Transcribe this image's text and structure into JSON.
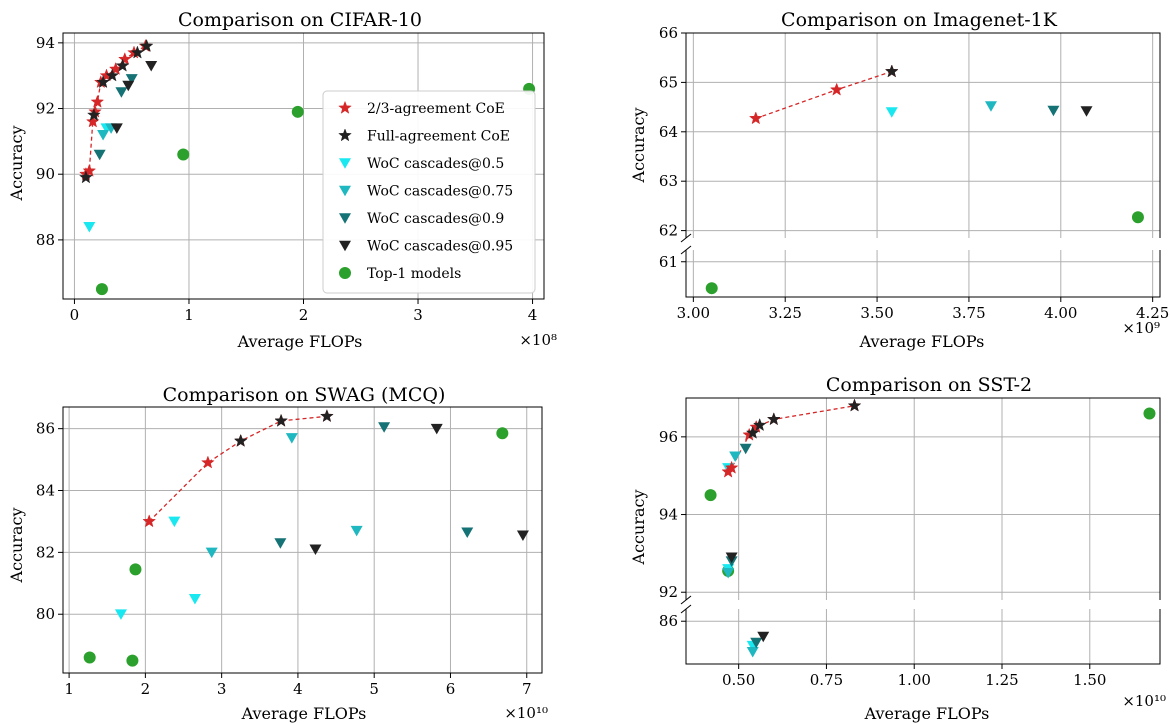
{
  "series_styles": {
    "two_thirds": {
      "name": "2/3-agreement CoE",
      "marker": "star",
      "color": "#d62728"
    },
    "full": {
      "name": "Full-agreement CoE",
      "marker": "star",
      "color": "#222222"
    },
    "woc05": {
      "name": "WoC cascades@0.5",
      "marker": "tri",
      "color": "#1ae8f0"
    },
    "woc075": {
      "name": "WoC cascades@0.75",
      "marker": "tri",
      "color": "#1fb8c0"
    },
    "woc09": {
      "name": "WoC cascades@0.9",
      "marker": "tri",
      "color": "#157275"
    },
    "woc095": {
      "name": "WoC cascades@0.95",
      "marker": "tri",
      "color": "#222222"
    },
    "top1": {
      "name": "Top-1 models",
      "marker": "circle",
      "color": "#2ca02c"
    }
  },
  "chart_data": [
    {
      "id": "cifar",
      "type": "scatter",
      "title": "Comparison on CIFAR-10",
      "xlabel": "Average FLOPs",
      "ylabel": "Accuracy",
      "x_multiplier": "×10⁸",
      "xlim": [
        -0.1,
        4.1
      ],
      "ylim": [
        86.2,
        94.3
      ],
      "xticks": [
        0,
        1,
        2,
        3,
        4
      ],
      "yticks": [
        88,
        90,
        92,
        94
      ],
      "grid": true,
      "legend": "center-right",
      "frontier": "two_thirds",
      "series": {
        "two_thirds": [
          [
            0.1,
            90.0
          ],
          [
            0.13,
            90.1
          ],
          [
            0.16,
            91.6
          ],
          [
            0.18,
            91.9
          ],
          [
            0.2,
            92.2
          ],
          [
            0.23,
            92.8
          ],
          [
            0.28,
            93.0
          ],
          [
            0.36,
            93.2
          ],
          [
            0.44,
            93.5
          ],
          [
            0.52,
            93.7
          ],
          [
            0.62,
            93.9
          ]
        ],
        "full": [
          [
            0.1,
            89.9
          ],
          [
            0.17,
            91.8
          ],
          [
            0.25,
            92.8
          ],
          [
            0.33,
            93.0
          ],
          [
            0.42,
            93.3
          ],
          [
            0.55,
            93.7
          ],
          [
            0.63,
            93.9
          ]
        ],
        "woc05": [
          [
            0.13,
            88.4
          ],
          [
            0.28,
            91.4
          ]
        ],
        "woc075": [
          [
            0.25,
            91.2
          ],
          [
            0.32,
            91.4
          ]
        ],
        "woc09": [
          [
            0.22,
            90.6
          ],
          [
            0.41,
            92.5
          ],
          [
            0.5,
            92.9
          ]
        ],
        "woc095": [
          [
            0.37,
            91.4
          ],
          [
            0.47,
            92.7
          ],
          [
            0.67,
            93.3
          ]
        ],
        "top1": [
          [
            0.24,
            86.5
          ],
          [
            0.95,
            90.6
          ],
          [
            1.95,
            91.9
          ],
          [
            3.97,
            92.6
          ]
        ]
      }
    },
    {
      "id": "imagenet",
      "type": "scatter",
      "title": "Comparison on Imagenet-1K",
      "xlabel": "Average FLOPs",
      "ylabel": "Accuracy",
      "x_multiplier": "×10⁹",
      "xlim": [
        2.98,
        4.27
      ],
      "ylim_upper": [
        61.85,
        66.0
      ],
      "ylim_lower": [
        60.4,
        61.2
      ],
      "xticks": [
        "3.00",
        "3.25",
        "3.50",
        "3.75",
        "4.00",
        "4.25"
      ],
      "yticks_upper": [
        62,
        63,
        64,
        65,
        66
      ],
      "yticks_lower": [
        61
      ],
      "broken_axis": true,
      "grid": true,
      "frontier": "two_thirds",
      "series": {
        "two_thirds": [
          [
            3.17,
            64.27
          ],
          [
            3.39,
            64.85
          ],
          [
            3.54,
            65.22
          ]
        ],
        "full": [
          [
            3.54,
            65.22
          ]
        ],
        "woc05": [
          [
            3.54,
            64.4
          ]
        ],
        "woc075": [
          [
            3.81,
            64.52
          ]
        ],
        "woc09": [
          [
            3.98,
            64.43
          ]
        ],
        "woc095": [
          [
            4.07,
            64.42
          ]
        ],
        "top1": [
          [
            3.05,
            60.55
          ],
          [
            4.21,
            62.27
          ]
        ]
      }
    },
    {
      "id": "swag",
      "type": "scatter",
      "title": "Comparison on SWAG (MCQ)",
      "xlabel": "Average FLOPs",
      "ylabel": "Accuracy",
      "x_multiplier": "×10¹⁰",
      "xlim": [
        0.92,
        7.2
      ],
      "ylim": [
        78.1,
        86.7
      ],
      "xticks": [
        1,
        2,
        3,
        4,
        5,
        6,
        7
      ],
      "yticks": [
        80,
        82,
        84,
        86
      ],
      "grid": true,
      "frontier": "two_thirds",
      "series": {
        "two_thirds": [
          [
            2.05,
            83.0
          ],
          [
            2.82,
            84.9
          ],
          [
            3.25,
            85.6
          ],
          [
            3.78,
            86.25
          ],
          [
            4.38,
            86.4
          ]
        ],
        "full": [
          [
            3.25,
            85.6
          ],
          [
            3.78,
            86.25
          ],
          [
            4.38,
            86.4
          ]
        ],
        "woc05": [
          [
            1.68,
            80.0
          ],
          [
            2.38,
            83.0
          ],
          [
            2.65,
            80.5
          ]
        ],
        "woc075": [
          [
            2.87,
            82.0
          ],
          [
            3.92,
            85.7
          ],
          [
            4.77,
            82.7
          ]
        ],
        "woc09": [
          [
            3.77,
            82.3
          ],
          [
            5.13,
            86.05
          ],
          [
            6.22,
            82.65
          ]
        ],
        "woc095": [
          [
            4.23,
            82.1
          ],
          [
            5.82,
            86.0
          ],
          [
            6.95,
            82.55
          ]
        ],
        "top1": [
          [
            1.27,
            78.6
          ],
          [
            1.83,
            78.5
          ],
          [
            1.87,
            81.45
          ],
          [
            6.68,
            85.85
          ]
        ]
      }
    },
    {
      "id": "sst2",
      "type": "scatter",
      "title": "Comparison on SST-2",
      "xlabel": "Average FLOPs",
      "ylabel": "Accuracy",
      "x_multiplier": "×10¹⁰",
      "xlim": [
        0.35,
        1.7
      ],
      "ylim_upper": [
        91.8,
        97.0
      ],
      "ylim_lower": [
        84.6,
        86.4
      ],
      "xticks": [
        "0.50",
        "0.75",
        "1.00",
        "1.25",
        "1.50"
      ],
      "yticks_upper": [
        92,
        94,
        96
      ],
      "yticks_lower": [
        86
      ],
      "broken_axis": true,
      "grid": true,
      "frontier": "two_thirds",
      "series": {
        "two_thirds": [
          [
            0.47,
            95.1
          ],
          [
            0.48,
            95.2
          ],
          [
            0.53,
            96.05
          ],
          [
            0.55,
            96.25
          ],
          [
            0.6,
            96.45
          ],
          [
            0.83,
            96.8
          ]
        ],
        "full": [
          [
            0.54,
            96.1
          ],
          [
            0.56,
            96.3
          ],
          [
            0.6,
            96.45
          ],
          [
            0.83,
            96.8
          ]
        ],
        "woc05": [
          [
            0.47,
            95.2
          ],
          [
            0.47,
            92.6
          ],
          [
            0.54,
            85.2
          ]
        ],
        "woc075": [
          [
            0.49,
            95.5
          ],
          [
            0.54,
            85.0
          ],
          [
            0.47,
            92.5
          ]
        ],
        "woc09": [
          [
            0.52,
            95.7
          ],
          [
            0.55,
            85.3
          ],
          [
            0.48,
            92.8
          ]
        ],
        "woc095": [
          [
            0.48,
            92.9
          ],
          [
            0.57,
            85.5
          ]
        ],
        "top1": [
          [
            0.42,
            94.5
          ],
          [
            0.47,
            92.55
          ],
          [
            1.67,
            96.6
          ]
        ]
      }
    }
  ]
}
